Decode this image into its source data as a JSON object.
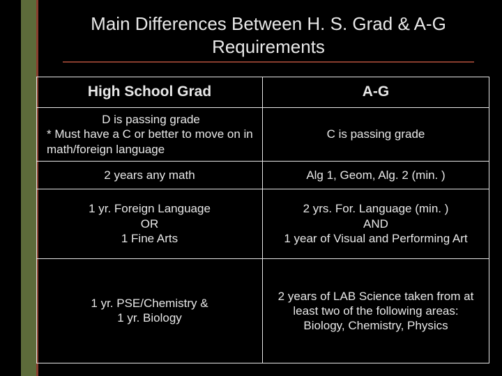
{
  "style": {
    "background_color": "#000000",
    "left_band_color": "#5d6b3a",
    "left_stripe_color": "#8a3d2e",
    "title_underline_color": "#8a3d2e",
    "text_color": "#e8e8e8",
    "border_color": "#e8e8e8",
    "title_fontsize": 26,
    "header_fontsize": 21,
    "body_fontsize": 17,
    "font_family": "Arial"
  },
  "title": "Main Differences Between H. S. Grad & A-G Requirements",
  "table": {
    "type": "table",
    "columns": [
      "High School Grad",
      "A-G"
    ],
    "rows": [
      {
        "left": [
          "D is passing grade",
          "* Must have a C or better to move on in math/foreign language"
        ],
        "right": [
          "C is passing grade"
        ]
      },
      {
        "left": [
          "2 years any math"
        ],
        "right": [
          "Alg 1, Geom, Alg. 2 (min. )"
        ]
      },
      {
        "left": [
          "1 yr. Foreign Language",
          "OR",
          "1 Fine Arts"
        ],
        "right": [
          "2 yrs. For. Language (min. )",
          "AND",
          "1 year of Visual and Performing Art"
        ]
      },
      {
        "left": [
          "1 yr. PSE/Chemistry &",
          "1 yr. Biology"
        ],
        "right": [
          "2 years of LAB Science taken from at least two of the following areas:",
          "Biology, Chemistry, Physics"
        ]
      }
    ]
  }
}
